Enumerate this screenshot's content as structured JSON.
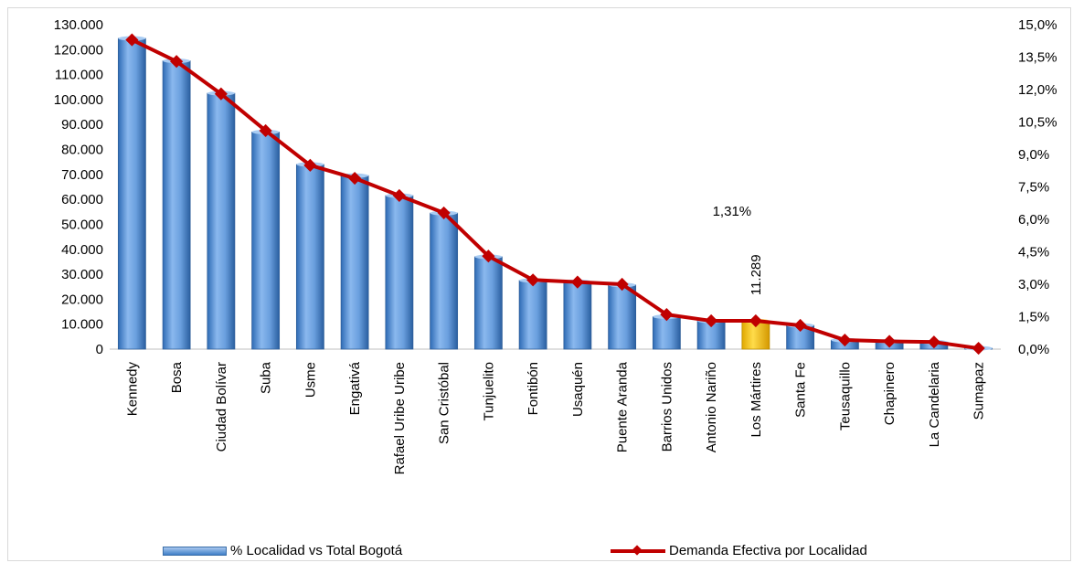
{
  "chart_data": {
    "type": "bar",
    "categories": [
      "Kennedy",
      "Bosa",
      "Ciudad Bolívar",
      "Suba",
      "Usme",
      "Engativá",
      "Rafael Uribe Uribe",
      "San Cristóbal",
      "Tunjuelito",
      "Fontibón",
      "Usaquén",
      "Puente Aranda",
      "Barrios Unidos",
      "Antonio Nariño",
      "Los Mártires",
      "Santa Fe",
      "Teusaquillo",
      "Chapinero",
      "La Candelaria",
      "Sumapaz"
    ],
    "series": [
      {
        "name": "% Localidad vs Total Bogotá",
        "type": "bar",
        "axis": "left",
        "values": [
          124500,
          115500,
          102500,
          87000,
          74000,
          69500,
          61500,
          54500,
          37000,
          27500,
          27000,
          25700,
          13000,
          11300,
          11289,
          9500,
          3600,
          3100,
          2800,
          350
        ],
        "color": "#4f8fd8",
        "highlight_index": 14,
        "highlight_color": "#ffc000"
      },
      {
        "name": "Demanda Efectiva por Localidad",
        "type": "line",
        "axis": "right",
        "values": [
          14.3,
          13.3,
          11.8,
          10.1,
          8.5,
          7.9,
          7.1,
          6.3,
          4.3,
          3.2,
          3.1,
          3.0,
          1.6,
          1.31,
          1.31,
          1.1,
          0.42,
          0.36,
          0.33,
          0.04
        ],
        "color": "#c00000"
      }
    ],
    "y_left": {
      "ylim": [
        0,
        130000
      ],
      "ticks": [
        "0",
        "10.000",
        "20.000",
        "30.000",
        "40.000",
        "50.000",
        "60.000",
        "70.000",
        "80.000",
        "90.000",
        "100.000",
        "110.000",
        "120.000",
        "130.000"
      ]
    },
    "y_right": {
      "ylim": [
        0,
        15
      ],
      "ticks": [
        "0,0%",
        "1,5%",
        "3,0%",
        "4,5%",
        "6,0%",
        "7,5%",
        "9,0%",
        "10,5%",
        "12,0%",
        "13,5%",
        "15,0%"
      ]
    },
    "annotations": {
      "bar_label": "11.289",
      "line_label": "1,31%"
    },
    "legend_position": "bottom"
  },
  "legend": {
    "bar_label": "% Localidad vs Total Bogotá",
    "line_label": "Demanda Efectiva por Localidad"
  }
}
